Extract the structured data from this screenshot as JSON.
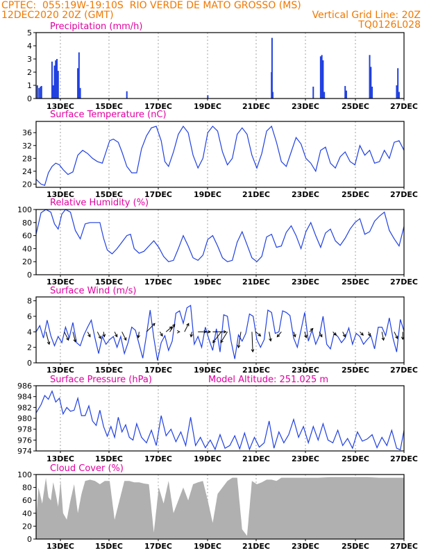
{
  "header": {
    "line1": "CPTEC:  055:19W-19:10S  RIO VERDE DE MATO GROSSO (MS)",
    "line2_left": "12DEC2020 20Z (GMT)",
    "line2_right": "Vertical Grid Line: 20Z",
    "line3_right": "TQ0126L028"
  },
  "colors": {
    "header": "#f07800",
    "title": "#e000a0",
    "series": "#2040e0",
    "cloud": "#a8a8a8",
    "arrow": "#000000",
    "frame": "#000000"
  },
  "chart_data": [
    {
      "id": "precip",
      "type": "bar",
      "title": "Precipitation (mm/h)",
      "ylim": [
        0,
        5
      ],
      "yticks": [
        0,
        1,
        2,
        3,
        4,
        5
      ],
      "xlim": [
        0,
        15
      ],
      "xticks": [
        "13DEC",
        "15DEC",
        "17DEC",
        "19DEC",
        "21DEC",
        "23DEC",
        "25DEC",
        "27DEC"
      ],
      "x": [
        0.05,
        0.12,
        0.18,
        0.22,
        0.65,
        0.7,
        0.75,
        0.8,
        0.85,
        0.9,
        1.7,
        1.75,
        1.8,
        3.7,
        7.0,
        9.6,
        9.62,
        9.65,
        11.3,
        11.6,
        11.65,
        11.7,
        11.75,
        12.6,
        12.65,
        13.6,
        13.65,
        13.7,
        14.7,
        14.75,
        14.8
      ],
      "values": [
        1.0,
        0.8,
        0.9,
        0.95,
        2.8,
        1.0,
        2.5,
        2.9,
        3.0,
        2.1,
        2.3,
        3.5,
        0.8,
        0.55,
        0.25,
        2.0,
        4.6,
        0.5,
        0.9,
        3.2,
        3.3,
        2.9,
        0.5,
        0.95,
        0.6,
        3.3,
        2.4,
        0.9,
        1.0,
        2.3,
        0.5
      ]
    },
    {
      "id": "temp",
      "type": "line",
      "title": "Surface Temperature (nC)",
      "ylim": [
        19,
        39.5
      ],
      "yticks": [
        20,
        24,
        28,
        32,
        36
      ],
      "xlim": [
        0,
        15
      ],
      "xticks": [
        "13DEC",
        "15DEC",
        "17DEC",
        "19DEC",
        "21DEC",
        "23DEC",
        "25DEC",
        "27DEC"
      ],
      "x": [
        0,
        0.2,
        0.35,
        0.5,
        0.65,
        0.8,
        0.95,
        1.1,
        1.3,
        1.5,
        1.7,
        1.9,
        2.1,
        2.3,
        2.5,
        2.7,
        2.85,
        3.0,
        3.15,
        3.35,
        3.5,
        3.7,
        3.9,
        4.1,
        4.3,
        4.5,
        4.7,
        4.9,
        5.1,
        5.25,
        5.4,
        5.6,
        5.8,
        6.0,
        6.2,
        6.4,
        6.6,
        6.8,
        7.0,
        7.2,
        7.4,
        7.6,
        7.8,
        8.0,
        8.2,
        8.4,
        8.6,
        8.8,
        9.0,
        9.2,
        9.4,
        9.6,
        9.8,
        10.0,
        10.2,
        10.4,
        10.6,
        10.8,
        11.0,
        11.2,
        11.4,
        11.6,
        11.8,
        12.0,
        12.2,
        12.4,
        12.6,
        12.8,
        13.0,
        13.2,
        13.4,
        13.6,
        13.8,
        14.0,
        14.2,
        14.4,
        14.6,
        14.8,
        15.0
      ],
      "values": [
        21.5,
        20.0,
        19.6,
        23.5,
        25.5,
        26.5,
        26.0,
        24.5,
        23.0,
        23.8,
        29.0,
        30.5,
        29.5,
        28.0,
        27.0,
        26.5,
        30.0,
        33.5,
        34.0,
        33.0,
        30.0,
        25.5,
        23.5,
        23.5,
        31.0,
        35.0,
        37.5,
        38.0,
        33.5,
        27.0,
        25.5,
        30.0,
        35.5,
        38.0,
        36.0,
        29.0,
        25.0,
        28.0,
        36.0,
        38.0,
        36.5,
        30.0,
        26.0,
        28.0,
        35.5,
        37.5,
        35.5,
        29.0,
        25.0,
        29.5,
        36.5,
        38.0,
        33.0,
        27.0,
        25.5,
        30.0,
        34.5,
        32.5,
        28.0,
        26.5,
        24.0,
        30.5,
        31.5,
        26.5,
        25.0,
        28.5,
        30.0,
        27.0,
        26.0,
        32.0,
        29.0,
        30.5,
        26.5,
        27.0,
        30.5,
        28.0,
        33.0,
        33.5,
        30.5
      ]
    },
    {
      "id": "rh",
      "type": "line",
      "title": "Relative Humidity (%)",
      "ylim": [
        0,
        100
      ],
      "yticks": [
        0,
        20,
        40,
        60,
        80,
        100
      ],
      "xlim": [
        0,
        15
      ],
      "xticks": [
        "13DEC",
        "15DEC",
        "17DEC",
        "19DEC",
        "21DEC",
        "23DEC",
        "25DEC",
        "27DEC"
      ],
      "x": [
        0,
        0.2,
        0.4,
        0.6,
        0.75,
        0.9,
        1.05,
        1.2,
        1.4,
        1.6,
        1.8,
        2.0,
        2.2,
        2.4,
        2.6,
        2.75,
        2.9,
        3.1,
        3.3,
        3.5,
        3.7,
        3.85,
        4.0,
        4.2,
        4.4,
        4.6,
        4.8,
        5.0,
        5.2,
        5.4,
        5.6,
        5.8,
        6.0,
        6.2,
        6.4,
        6.6,
        6.8,
        7.0,
        7.2,
        7.4,
        7.6,
        7.8,
        8.0,
        8.2,
        8.4,
        8.6,
        8.8,
        9.0,
        9.2,
        9.4,
        9.6,
        9.8,
        10.0,
        10.2,
        10.4,
        10.6,
        10.8,
        11.0,
        11.2,
        11.4,
        11.6,
        11.8,
        12.0,
        12.2,
        12.4,
        12.6,
        12.8,
        13.0,
        13.2,
        13.4,
        13.6,
        13.8,
        14.0,
        14.2,
        14.4,
        14.6,
        14.8,
        15.0
      ],
      "values": [
        62,
        95,
        100,
        96,
        78,
        70,
        93,
        100,
        96,
        68,
        55,
        78,
        80,
        80,
        80,
        56,
        38,
        32,
        40,
        50,
        60,
        62,
        40,
        33,
        36,
        44,
        52,
        42,
        28,
        20,
        22,
        40,
        60,
        44,
        26,
        22,
        30,
        54,
        60,
        44,
        26,
        20,
        22,
        50,
        66,
        46,
        26,
        20,
        28,
        58,
        62,
        42,
        44,
        65,
        75,
        60,
        40,
        66,
        80,
        60,
        42,
        64,
        70,
        52,
        45,
        56,
        70,
        80,
        86,
        62,
        66,
        82,
        90,
        96,
        68,
        55,
        44,
        74
      ]
    },
    {
      "id": "wind",
      "type": "line",
      "title": "Surface Wind (m/s)",
      "ylim": [
        0,
        8.5
      ],
      "yticks": [
        0,
        2,
        4,
        6,
        8
      ],
      "xlim": [
        0,
        15
      ],
      "xticks": [
        "13DEC",
        "15DEC",
        "17DEC",
        "19DEC",
        "21DEC",
        "23DEC",
        "25DEC",
        "27DEC"
      ],
      "x": [
        0,
        0.15,
        0.3,
        0.45,
        0.6,
        0.75,
        0.9,
        1.05,
        1.2,
        1.35,
        1.5,
        1.65,
        1.8,
        1.95,
        2.1,
        2.25,
        2.4,
        2.55,
        2.7,
        2.85,
        3.0,
        3.15,
        3.3,
        3.45,
        3.6,
        3.75,
        3.9,
        4.05,
        4.2,
        4.35,
        4.5,
        4.65,
        4.8,
        4.95,
        5.1,
        5.25,
        5.4,
        5.55,
        5.7,
        5.85,
        6.0,
        6.15,
        6.3,
        6.45,
        6.6,
        6.75,
        6.9,
        7.05,
        7.2,
        7.35,
        7.5,
        7.65,
        7.8,
        7.95,
        8.1,
        8.25,
        8.4,
        8.55,
        8.7,
        8.85,
        9.0,
        9.15,
        9.3,
        9.45,
        9.6,
        9.75,
        9.9,
        10.05,
        10.2,
        10.35,
        10.5,
        10.65,
        10.8,
        10.95,
        11.1,
        11.25,
        11.4,
        11.55,
        11.7,
        11.85,
        12.0,
        12.15,
        12.3,
        12.45,
        12.6,
        12.75,
        12.9,
        13.05,
        13.2,
        13.35,
        13.5,
        13.65,
        13.8,
        13.95,
        14.1,
        14.25,
        14.4,
        14.55,
        14.7,
        14.85,
        15.0
      ],
      "values": [
        4.0,
        4.8,
        3.2,
        5.5,
        3.5,
        2.2,
        3.4,
        2.6,
        4.6,
        3.2,
        5.2,
        2.6,
        2.2,
        3.6,
        4.6,
        5.5,
        3.2,
        1.2,
        3.4,
        2.4,
        3.0,
        3.4,
        2.0,
        3.4,
        1.2,
        2.6,
        4.6,
        4.2,
        2.4,
        0.6,
        3.6,
        6.8,
        3.2,
        0.3,
        2.6,
        3.5,
        1.6,
        2.8,
        6.4,
        6.7,
        5.1,
        7.1,
        7.4,
        2.4,
        3.4,
        2.0,
        4.6,
        3.0,
        1.6,
        4.4,
        1.4,
        6.2,
        6.0,
        2.8,
        0.5,
        3.6,
        2.8,
        3.8,
        6.3,
        6.0,
        3.0,
        2.0,
        3.0,
        6.8,
        6.5,
        3.8,
        4.0,
        6.7,
        6.5,
        6.1,
        3.2,
        2.0,
        4.2,
        6.5,
        2.8,
        4.2,
        2.4,
        3.5,
        6.0,
        2.4,
        1.8,
        3.8,
        3.4,
        2.6,
        3.2,
        4.5,
        2.4,
        3.8,
        3.4,
        2.4,
        3.0,
        3.5,
        1.8,
        4.6,
        4.6,
        3.5,
        5.8,
        3.2,
        1.4,
        5.6,
        4.1
      ],
      "arrows": [
        {
          "x": 0.4,
          "u": 0.4,
          "v": -1.5
        },
        {
          "x": 1.15,
          "u": 0.5,
          "v": -1.0
        },
        {
          "x": 1.5,
          "u": 0.3,
          "v": -1.2
        },
        {
          "x": 2.1,
          "u": 0.3,
          "v": -0.6
        },
        {
          "x": 2.5,
          "u": 0.4,
          "v": -0.8
        },
        {
          "x": 2.75,
          "u": 0.1,
          "v": -0.6
        },
        {
          "x": 3.2,
          "u": 0.3,
          "v": -0.6
        },
        {
          "x": 3.5,
          "u": 0.5,
          "v": -1.0
        },
        {
          "x": 4.2,
          "u": -0.1,
          "v": -0.7
        },
        {
          "x": 4.5,
          "u": 1.0,
          "v": 1.0
        },
        {
          "x": 5.05,
          "u": 0.3,
          "v": -0.5
        },
        {
          "x": 5.3,
          "u": 0.7,
          "v": 0.6
        },
        {
          "x": 5.45,
          "u": 0.6,
          "v": 0.9
        },
        {
          "x": 5.85,
          "u": 0.0,
          "v": 0.0
        },
        {
          "x": 6.05,
          "u": 0.5,
          "v": 1.0
        },
        {
          "x": 6.35,
          "u": -0.1,
          "v": -0.6
        },
        {
          "x": 6.6,
          "u": 1.0,
          "v": 0.0
        },
        {
          "x": 6.9,
          "u": 0.6,
          "v": 0.0
        },
        {
          "x": 7.2,
          "u": 1.6,
          "v": 0.0
        },
        {
          "x": 7.55,
          "u": -1.0,
          "v": -1.3
        },
        {
          "x": 7.8,
          "u": -0.8,
          "v": -1.3
        },
        {
          "x": 8.35,
          "u": -0.3,
          "v": -1.9
        },
        {
          "x": 8.8,
          "u": 0.1,
          "v": -2.4
        },
        {
          "x": 8.95,
          "u": 0.6,
          "v": -0.5
        },
        {
          "x": 9.5,
          "u": 0.2,
          "v": -1.1
        },
        {
          "x": 10.0,
          "u": -0.5,
          "v": -0.6
        },
        {
          "x": 10.5,
          "u": 0.2,
          "v": -0.6
        },
        {
          "x": 10.95,
          "u": 0.2,
          "v": -0.7
        },
        {
          "x": 11.15,
          "u": 0.4,
          "v": 0.4
        },
        {
          "x": 11.55,
          "u": 0.3,
          "v": -0.6
        },
        {
          "x": 12.1,
          "u": 0.4,
          "v": -0.4
        },
        {
          "x": 12.5,
          "u": 0.3,
          "v": -0.6
        },
        {
          "x": 13.2,
          "u": 0.4,
          "v": -0.4
        },
        {
          "x": 13.55,
          "u": 0.2,
          "v": -0.5
        },
        {
          "x": 14.1,
          "u": 0.2,
          "v": -1.0
        },
        {
          "x": 14.6,
          "u": 0.4,
          "v": -0.8
        },
        {
          "x": 14.95,
          "u": 0.0,
          "v": -0.9
        }
      ]
    },
    {
      "id": "press",
      "type": "line",
      "title": "Surface Pressure (hPa)",
      "subtitle": "Model Altitude: 251.025 m",
      "ylim": [
        974,
        986
      ],
      "yticks": [
        974,
        976,
        978,
        980,
        982,
        984,
        986
      ],
      "xlim": [
        0,
        15
      ],
      "xticks": [
        "13DEC",
        "15DEC",
        "17DEC",
        "19DEC",
        "21DEC",
        "23DEC",
        "25DEC",
        "27DEC"
      ],
      "x": [
        0,
        0.2,
        0.35,
        0.5,
        0.65,
        0.8,
        0.95,
        1.1,
        1.25,
        1.4,
        1.55,
        1.7,
        1.85,
        2.0,
        2.15,
        2.3,
        2.45,
        2.6,
        2.75,
        2.9,
        3.05,
        3.2,
        3.35,
        3.5,
        3.65,
        3.8,
        3.95,
        4.1,
        4.3,
        4.5,
        4.7,
        4.9,
        5.1,
        5.3,
        5.5,
        5.7,
        5.9,
        6.1,
        6.3,
        6.5,
        6.7,
        6.9,
        7.1,
        7.3,
        7.5,
        7.7,
        7.9,
        8.1,
        8.3,
        8.5,
        8.7,
        8.9,
        9.1,
        9.3,
        9.5,
        9.7,
        9.9,
        10.1,
        10.3,
        10.5,
        10.7,
        10.9,
        11.1,
        11.3,
        11.5,
        11.7,
        11.9,
        12.1,
        12.3,
        12.5,
        12.7,
        12.9,
        13.1,
        13.3,
        13.5,
        13.7,
        13.9,
        14.1,
        14.3,
        14.5,
        14.7,
        14.85,
        15.0
      ],
      "values": [
        981.0,
        982.5,
        984.2,
        983.5,
        985.0,
        983.0,
        983.7,
        980.8,
        982.0,
        981.3,
        981.5,
        983.7,
        980.5,
        980.5,
        982.3,
        979.5,
        978.7,
        981.5,
        978.5,
        976.7,
        978.5,
        976.5,
        980.2,
        977.5,
        978.8,
        976.5,
        976.0,
        979.0,
        976.5,
        975.5,
        977.8,
        975.0,
        980.5,
        976.8,
        978.0,
        975.7,
        977.5,
        975.0,
        980.2,
        975.0,
        976.5,
        974.6,
        976.0,
        974.3,
        977.0,
        974.5,
        975.0,
        976.8,
        974.4,
        977.3,
        974.3,
        976.5,
        974.7,
        975.5,
        979.5,
        974.5,
        977.5,
        975.5,
        977.0,
        979.8,
        976.5,
        978.5,
        975.5,
        978.5,
        976.0,
        979.0,
        976.0,
        975.5,
        977.8,
        975.0,
        976.3,
        974.5,
        977.5,
        975.8,
        976.2,
        977.0,
        974.6,
        976.5,
        975.0,
        977.8,
        974.5,
        974.2,
        977.8
      ]
    },
    {
      "id": "cloud",
      "type": "area",
      "title": "Cloud Cover (%)",
      "ylim": [
        0,
        100
      ],
      "yticks": [
        0,
        20,
        40,
        60,
        80,
        100
      ],
      "xlim": [
        0,
        15
      ],
      "xticks": [
        "13DEC",
        "15DEC",
        "17DEC",
        "19DEC",
        "21DEC",
        "23DEC",
        "25DEC",
        "27DEC"
      ],
      "x": [
        0,
        0.1,
        0.25,
        0.4,
        0.5,
        0.6,
        0.7,
        0.8,
        0.9,
        1.0,
        1.1,
        1.25,
        1.4,
        1.55,
        1.7,
        1.85,
        2.0,
        2.2,
        2.4,
        2.6,
        2.8,
        3.0,
        3.2,
        3.4,
        3.6,
        3.8,
        4.0,
        4.2,
        4.4,
        4.6,
        4.8,
        5.0,
        5.2,
        5.4,
        5.6,
        5.8,
        6.0,
        6.2,
        6.4,
        6.6,
        6.8,
        7.0,
        7.2,
        7.4,
        7.6,
        7.8,
        8.0,
        8.2,
        8.4,
        8.6,
        8.8,
        9.0,
        9.2,
        9.4,
        9.6,
        9.8,
        10.0,
        10.5,
        11.0,
        11.5,
        12.0,
        12.5,
        13.0,
        13.5,
        14.0,
        14.5,
        15.0
      ],
      "values": [
        30,
        80,
        55,
        95,
        65,
        60,
        88,
        70,
        50,
        90,
        40,
        30,
        60,
        85,
        40,
        70,
        90,
        92,
        90,
        85,
        90,
        90,
        30,
        60,
        90,
        90,
        88,
        88,
        86,
        85,
        10,
        80,
        55,
        90,
        40,
        60,
        80,
        60,
        85,
        88,
        90,
        60,
        25,
        70,
        80,
        90,
        95,
        95,
        15,
        5,
        90,
        85,
        88,
        92,
        92,
        90,
        95,
        95,
        95,
        95,
        96,
        96,
        96,
        96,
        95,
        95,
        95
      ]
    }
  ]
}
